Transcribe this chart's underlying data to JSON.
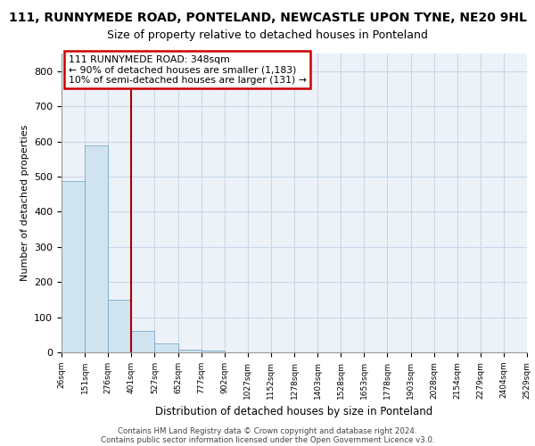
{
  "title_line1": "111, RUNNYMEDE ROAD, PONTELAND, NEWCASTLE UPON TYNE, NE20 9HL",
  "title_line2": "Size of property relative to detached houses in Ponteland",
  "xlabel": "Distribution of detached houses by size in Ponteland",
  "ylabel": "Number of detached properties",
  "bar_values": [
    486,
    589,
    150,
    62,
    25,
    7,
    5,
    1,
    0,
    0,
    0,
    0,
    0,
    0,
    0,
    0,
    0,
    0,
    0,
    0
  ],
  "bin_labels": [
    "26sqm",
    "151sqm",
    "276sqm",
    "401sqm",
    "527sqm",
    "652sqm",
    "777sqm",
    "902sqm",
    "1027sqm",
    "1152sqm",
    "1278sqm",
    "1403sqm",
    "1528sqm",
    "1653sqm",
    "1778sqm",
    "1903sqm",
    "2028sqm",
    "2154sqm",
    "2279sqm",
    "2404sqm",
    "2529sqm"
  ],
  "bar_color": "#d0e4f0",
  "bar_edgecolor": "#7aaac8",
  "vertical_line_x": 3.0,
  "vertical_line_color": "#aa0000",
  "annotation_box_text": "111 RUNNYMEDE ROAD: 348sqm\n← 90% of detached houses are smaller (1,183)\n10% of semi-detached houses are larger (131) →",
  "annotation_box_color": "#cc0000",
  "ylim": [
    0,
    850
  ],
  "yticks": [
    0,
    100,
    200,
    300,
    400,
    500,
    600,
    700,
    800
  ],
  "grid_color": "#c8d8e8",
  "footer_line1": "Contains HM Land Registry data © Crown copyright and database right 2024.",
  "footer_line2": "Contains public sector information licensed under the Open Government Licence v3.0.",
  "bg_color": "#edf2f8"
}
